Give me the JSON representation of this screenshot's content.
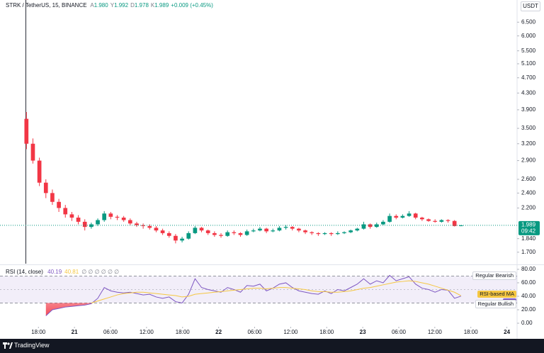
{
  "header": {
    "symbol": "STRK / TetherUS, 15, BINANCE",
    "ohlc": [
      {
        "key": "A",
        "value": "1.980"
      },
      {
        "key": "Y",
        "value": "1.992"
      },
      {
        "key": "D",
        "value": "1.978"
      },
      {
        "key": "K",
        "value": "1.989"
      }
    ],
    "change": "+0.009 (+0.45%)",
    "currency": "USDT"
  },
  "chart_data": [
    {
      "type": "candlestick",
      "x": [
        -2,
        -0.92,
        0.16,
        1.24,
        2.32,
        3.4,
        4.48,
        5.56,
        6.64,
        7.72,
        8.8,
        9.88,
        10.96,
        12.04,
        13.12,
        14.2,
        15.28,
        16.36,
        17.44,
        18.52,
        19.6,
        20.68,
        21.76,
        22.84,
        23.92,
        25,
        26.08,
        27.16,
        28.24,
        29.32,
        30.4,
        31.48,
        32.56,
        33.64,
        34.72,
        35.8,
        36.88,
        37.96,
        39.04,
        40.12,
        41.2,
        42.28,
        43.36,
        44.44,
        45.52,
        46.6,
        47.68,
        48.76,
        49.84,
        50.92,
        52,
        53.08,
        54.16,
        55.24,
        56.32,
        57.4,
        58.48,
        59.56,
        60.64,
        61.72,
        62.8,
        63.88,
        64.96,
        66.04,
        67.12,
        68.2,
        69.28,
        70.36
      ],
      "open": [
        3.7,
        3.2,
        2.9,
        2.55,
        2.4,
        2.28,
        2.2,
        2.12,
        2.08,
        2.03,
        1.97,
        2.0,
        2.05,
        2.13,
        2.09,
        2.08,
        2.05,
        2.01,
        1.99,
        1.98,
        1.96,
        1.93,
        1.9,
        1.87,
        1.82,
        1.84,
        1.9,
        1.96,
        1.93,
        1.9,
        1.88,
        1.87,
        1.91,
        1.9,
        1.88,
        1.92,
        1.93,
        1.95,
        1.92,
        1.93,
        1.96,
        1.97,
        1.95,
        1.93,
        1.91,
        1.9,
        1.89,
        1.9,
        1.89,
        1.9,
        1.91,
        1.93,
        1.95,
        2.0,
        1.97,
        2.0,
        2.03,
        2.1,
        2.08,
        2.1,
        2.13,
        2.08,
        2.06,
        2.04,
        2.03,
        2.05,
        2.04,
        1.98
      ],
      "high": [
        3.85,
        3.3,
        2.95,
        2.6,
        2.45,
        2.32,
        2.24,
        2.15,
        2.11,
        2.06,
        2.02,
        2.07,
        2.16,
        2.15,
        2.11,
        2.1,
        2.07,
        2.03,
        2.01,
        2.0,
        1.98,
        1.95,
        1.92,
        1.89,
        1.86,
        1.92,
        1.98,
        1.97,
        1.94,
        1.92,
        1.9,
        1.93,
        1.93,
        1.91,
        1.94,
        1.95,
        1.97,
        1.96,
        1.95,
        1.98,
        1.99,
        1.98,
        1.96,
        1.94,
        1.92,
        1.91,
        1.91,
        1.91,
        1.92,
        1.92,
        1.94,
        1.96,
        2.03,
        2.01,
        2.02,
        2.05,
        2.13,
        2.12,
        2.12,
        2.16,
        2.14,
        2.09,
        2.07,
        2.06,
        2.06,
        2.06,
        2.05,
        1.992
      ],
      "low": [
        3.1,
        2.85,
        2.5,
        2.33,
        2.24,
        2.15,
        2.08,
        2.04,
        2.0,
        1.93,
        1.95,
        1.98,
        2.03,
        2.06,
        2.05,
        2.03,
        1.99,
        1.97,
        1.95,
        1.94,
        1.91,
        1.88,
        1.85,
        1.79,
        1.8,
        1.83,
        1.89,
        1.91,
        1.88,
        1.86,
        1.85,
        1.86,
        1.88,
        1.86,
        1.87,
        1.91,
        1.92,
        1.9,
        1.91,
        1.92,
        1.94,
        1.93,
        1.91,
        1.89,
        1.88,
        1.87,
        1.88,
        1.87,
        1.88,
        1.89,
        1.9,
        1.92,
        1.94,
        1.95,
        1.96,
        1.99,
        2.02,
        2.06,
        2.07,
        2.09,
        2.06,
        2.04,
        2.03,
        2.02,
        2.02,
        2.02,
        1.975,
        1.978
      ],
      "close": [
        3.2,
        2.9,
        2.55,
        2.4,
        2.28,
        2.2,
        2.12,
        2.08,
        2.03,
        1.97,
        2.0,
        2.05,
        2.13,
        2.09,
        2.08,
        2.05,
        2.01,
        1.99,
        1.98,
        1.96,
        1.93,
        1.9,
        1.87,
        1.82,
        1.84,
        1.9,
        1.96,
        1.93,
        1.9,
        1.88,
        1.87,
        1.91,
        1.9,
        1.88,
        1.92,
        1.93,
        1.95,
        1.92,
        1.93,
        1.96,
        1.97,
        1.95,
        1.93,
        1.91,
        1.9,
        1.89,
        1.9,
        1.89,
        1.9,
        1.91,
        1.93,
        1.95,
        2.0,
        1.97,
        2.0,
        2.03,
        2.1,
        2.08,
        2.1,
        2.13,
        2.08,
        2.06,
        2.04,
        2.03,
        2.05,
        2.04,
        1.98,
        1.989
      ],
      "up_color": "#089981",
      "down_color": "#f23645",
      "yscale": "log",
      "ylim": [
        1.59,
        6.81
      ],
      "yticks": [
        {
          "value": 6.5,
          "label": "6.500"
        },
        {
          "value": 6,
          "label": "6.000"
        },
        {
          "value": 5.5,
          "label": "5.500"
        },
        {
          "value": 5.1,
          "label": "5.100"
        },
        {
          "value": 4.7,
          "label": "4.700"
        },
        {
          "value": 4.3,
          "label": "4.300"
        },
        {
          "value": 3.9,
          "label": "3.900"
        },
        {
          "value": 3.5,
          "label": "3.500"
        },
        {
          "value": 3.2,
          "label": "3.200"
        },
        {
          "value": 2.9,
          "label": "2.900"
        },
        {
          "value": 2.6,
          "label": "2.600"
        },
        {
          "value": 2.4,
          "label": "2.400"
        },
        {
          "value": 2.2,
          "label": "2.200"
        },
        {
          "value": 1.84,
          "label": "1.840"
        },
        {
          "value": 1.7,
          "label": "1.700"
        }
      ],
      "xlim": [
        -6.4,
        79.7
      ],
      "xticks": [
        {
          "value": 0,
          "label": "18:00"
        },
        {
          "value": 6,
          "label": "21"
        },
        {
          "value": 12,
          "label": "06:00"
        },
        {
          "value": 18,
          "label": "12:00"
        },
        {
          "value": 24,
          "label": "18:00"
        },
        {
          "value": 30,
          "label": "22"
        },
        {
          "value": 36,
          "label": "06:00"
        },
        {
          "value": 42,
          "label": "12:00"
        },
        {
          "value": 48,
          "label": "18:00"
        },
        {
          "value": 54,
          "label": "23"
        },
        {
          "value": 60,
          "label": "06:00"
        },
        {
          "value": 66,
          "label": "12:00"
        },
        {
          "value": 72,
          "label": "18:00"
        },
        {
          "value": 78,
          "label": "24"
        }
      ],
      "last_price": {
        "label": "1.989",
        "countdown": "09:42"
      }
    },
    {
      "type": "line",
      "title": "RSI (14, close)",
      "x": [
        -2,
        -0.92,
        0.16,
        1.24,
        2.32,
        3.4,
        4.48,
        5.56,
        6.64,
        7.72,
        8.8,
        9.88,
        10.96,
        12.04,
        13.12,
        14.2,
        15.28,
        16.36,
        17.44,
        18.52,
        19.6,
        20.68,
        21.76,
        22.84,
        23.92,
        25,
        26.08,
        27.16,
        28.24,
        29.32,
        30.4,
        31.48,
        32.56,
        33.64,
        34.72,
        35.8,
        36.88,
        37.96,
        39.04,
        40.12,
        41.2,
        42.28,
        43.36,
        44.44,
        45.52,
        46.6,
        47.68,
        48.76,
        49.84,
        50.92,
        52,
        53.08,
        54.16,
        55.24,
        56.32,
        57.4,
        58.48,
        59.56,
        60.64,
        61.72,
        62.8,
        63.88,
        64.96,
        66.04,
        67.12,
        68.2,
        69.28,
        70.36
      ],
      "series": [
        {
          "name": "RSI",
          "color": "#7e57c2",
          "values": [
            null,
            null,
            null,
            11,
            20,
            22,
            24,
            25,
            26,
            27,
            29,
            37,
            53,
            48,
            46,
            45,
            46,
            44,
            42,
            43,
            39,
            37,
            39,
            32,
            30,
            43,
            66,
            53,
            50,
            48,
            46,
            53,
            50,
            46,
            56,
            55,
            58,
            48,
            52,
            58,
            60,
            53,
            48,
            46,
            44,
            43,
            48,
            44,
            50,
            48,
            53,
            58,
            66,
            58,
            63,
            60,
            71,
            63,
            66,
            69,
            58,
            52,
            50,
            46,
            50,
            49,
            37,
            40.19
          ]
        },
        {
          "name": "RSI-based MA",
          "color": "#f5c742",
          "values": [
            null,
            null,
            null,
            null,
            null,
            null,
            null,
            null,
            null,
            null,
            30,
            33,
            36,
            39,
            42,
            44,
            45,
            46,
            46,
            45,
            44,
            43,
            42,
            41,
            39,
            40,
            43,
            44,
            45,
            46,
            47,
            48,
            49,
            50,
            51,
            52,
            52,
            51,
            52,
            53,
            53,
            52,
            51,
            50,
            48,
            47,
            47,
            46,
            46,
            47,
            48,
            50,
            52,
            53,
            55,
            57,
            59,
            61,
            62,
            63,
            62,
            60,
            58,
            55,
            52,
            49,
            46,
            40.81
          ]
        }
      ],
      "ylim": [
        -4.2,
        85.2
      ],
      "yticks": [
        {
          "value": 80,
          "label": "80.00"
        },
        {
          "value": 60,
          "label": "60.00"
        },
        {
          "value": 40,
          "label": "40.00"
        },
        {
          "value": 20,
          "label": "20.00"
        },
        {
          "value": 0,
          "label": "0.00"
        }
      ],
      "bands": [
        70,
        50,
        30
      ],
      "annotations": [
        "Regular Bearish",
        "Regular Bullish"
      ],
      "legend_extra": "∅ ∅  ∅ ∅ ∅ ∅"
    }
  ],
  "footer": {
    "brand": "TradingView"
  }
}
